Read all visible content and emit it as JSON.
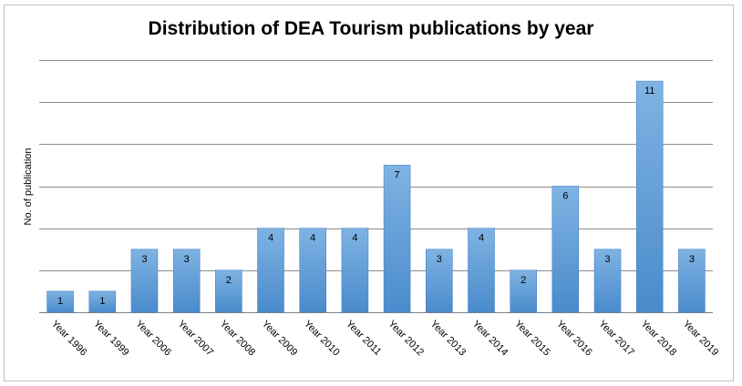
{
  "chart_data": {
    "type": "bar",
    "title": "Distribution of DEA Tourism publications by year",
    "xlabel": "",
    "ylabel": "No. of publication",
    "categories": [
      "Year 1996",
      "Year 1999",
      "Year 2006",
      "Year 2007",
      "Year 2008",
      "Year 2009",
      "Year 2010",
      "Year 2011",
      "Year 2012",
      "Year 2013",
      "Year 2014",
      "Year 2015",
      "Year 2016",
      "Year 2017",
      "Year 2018",
      "Year 2019"
    ],
    "values": [
      1,
      1,
      3,
      3,
      2,
      4,
      4,
      4,
      7,
      3,
      4,
      2,
      6,
      3,
      11,
      3
    ],
    "ylim": [
      0,
      12
    ],
    "grid": true,
    "legend": "none",
    "bar_color": "#5b9bd5",
    "bar_color_light": "#7fb3e3",
    "grid_color": "#808080"
  }
}
